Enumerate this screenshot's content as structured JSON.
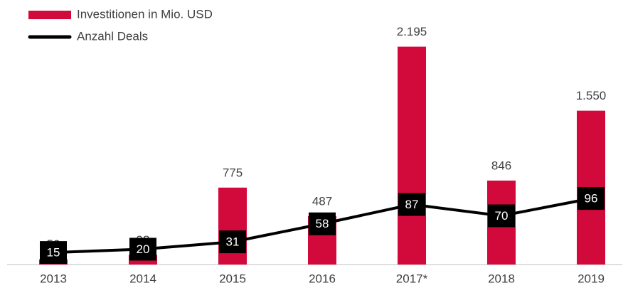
{
  "chart_data": {
    "type": "bar",
    "categories": [
      "2013",
      "2014",
      "2015",
      "2016",
      "2017*",
      "2018",
      "2019"
    ],
    "series": [
      {
        "name": "Investitionen in Mio. USD",
        "type": "bar",
        "color": "#d20a3c",
        "values": [
          52,
          98,
          775,
          487,
          2195,
          846,
          1550
        ],
        "value_labels": [
          "52",
          "98",
          "775",
          "487",
          "2.195",
          "846",
          "1.550"
        ]
      },
      {
        "name": "Anzahl Deals",
        "type": "line",
        "axis": "y2",
        "color": "#000000",
        "values": [
          15,
          20,
          31,
          58,
          87,
          70,
          96
        ]
      }
    ],
    "ylim": [
      0,
      2400
    ],
    "y2lim": [
      -3,
      354
    ],
    "legend": "top-left"
  }
}
